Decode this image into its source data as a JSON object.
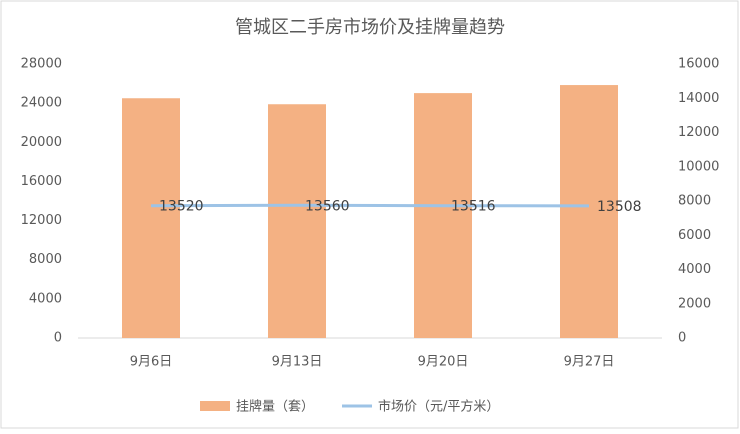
{
  "chart_data": {
    "type": "bar-line",
    "title": "管城区二手房市场价及挂牌量趋势",
    "categories": [
      "9月6日",
      "9月13日",
      "9月20日",
      "9月27日"
    ],
    "series": [
      {
        "name": "挂牌量（套）",
        "type": "bar",
        "axis": "y2",
        "color": "#f4b183",
        "values": [
          14000,
          13650,
          14300,
          14770
        ]
      },
      {
        "name": "市场价（元/平方米）",
        "type": "line",
        "axis": "y",
        "color": "#9dc3e6",
        "values": [
          13520,
          13560,
          13516,
          13508
        ]
      }
    ],
    "ylim": [
      0,
      28000
    ],
    "yticks": [
      0,
      4000,
      8000,
      12000,
      16000,
      20000,
      24000,
      28000
    ],
    "y2lim": [
      0,
      16000
    ],
    "y2ticks": [
      0,
      2000,
      4000,
      6000,
      8000,
      10000,
      12000,
      14000,
      16000
    ],
    "grid": false,
    "legend": "bottom"
  }
}
